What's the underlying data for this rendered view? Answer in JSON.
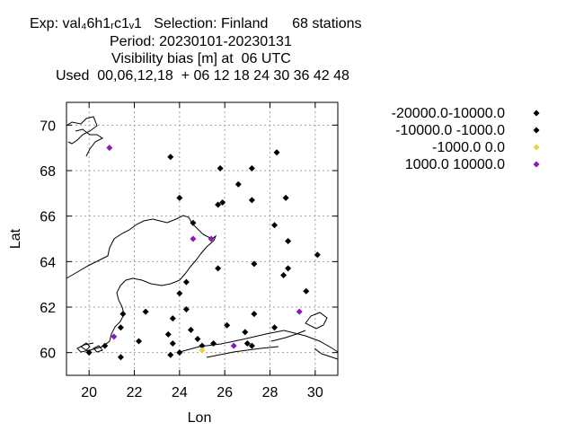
{
  "header": {
    "line1": "Exp: val₄6h1ᵣc1ᵥ1   Selection: Finland      68 stations",
    "line2": "Period: 20230101-20230131",
    "line3": "Visibility bias [m] at  06 UTC",
    "line4": "Used  00,06,12,18  + 06 12 18 24 30 36 42 48"
  },
  "chart_data": {
    "type": "scatter",
    "xlabel": "Lon",
    "ylabel": "Lat",
    "xlim": [
      19.0,
      31.0
    ],
    "ylim": [
      59.0,
      71.0
    ],
    "xticks": [
      20,
      22,
      24,
      26,
      28,
      30
    ],
    "yticks": [
      60,
      62,
      64,
      66,
      68,
      70
    ],
    "grid": true,
    "legend_position": "right",
    "series": [
      {
        "name": "-20000.0-10000.0",
        "color": "#000000",
        "points": []
      },
      {
        "name": "-10000.0 -1000.0",
        "color": "#000000",
        "points": [
          [
            20.0,
            60.0
          ],
          [
            20.7,
            60.3
          ],
          [
            21.4,
            59.8
          ],
          [
            21.4,
            61.1
          ],
          [
            21.5,
            61.7
          ],
          [
            22.2,
            60.5
          ],
          [
            22.5,
            61.8
          ],
          [
            23.5,
            60.8
          ],
          [
            23.6,
            59.9
          ],
          [
            23.6,
            68.6
          ],
          [
            23.7,
            61.5
          ],
          [
            23.7,
            60.4
          ],
          [
            24.0,
            66.8
          ],
          [
            24.0,
            60.0
          ],
          [
            24.0,
            62.6
          ],
          [
            24.3,
            61.9
          ],
          [
            24.3,
            63.1
          ],
          [
            24.5,
            61.0
          ],
          [
            24.6,
            65.7
          ],
          [
            24.8,
            60.6
          ],
          [
            25.0,
            60.3
          ],
          [
            25.5,
            60.4
          ],
          [
            25.7,
            63.7
          ],
          [
            25.7,
            66.5
          ],
          [
            25.8,
            68.1
          ],
          [
            25.9,
            66.6
          ],
          [
            26.1,
            61.2
          ],
          [
            26.6,
            67.4
          ],
          [
            26.9,
            60.9
          ],
          [
            27.0,
            60.4
          ],
          [
            27.2,
            60.3
          ],
          [
            27.2,
            66.7
          ],
          [
            27.2,
            68.1
          ],
          [
            27.3,
            63.9
          ],
          [
            27.3,
            61.7
          ],
          [
            28.2,
            65.6
          ],
          [
            28.2,
            61.1
          ],
          [
            28.3,
            68.8
          ],
          [
            28.6,
            63.4
          ],
          [
            28.7,
            66.8
          ],
          [
            28.8,
            64.9
          ],
          [
            28.8,
            63.7
          ],
          [
            29.6,
            62.7
          ],
          [
            30.1,
            64.3
          ]
        ]
      },
      {
        "name": "-1000.0 0.0",
        "color": "#f0d040",
        "points": [
          [
            25.0,
            60.1
          ]
        ]
      },
      {
        "name": "1000.0 10000.0",
        "color": "#8a1ab8",
        "points": [
          [
            20.9,
            69.0
          ],
          [
            21.1,
            60.7
          ],
          [
            24.6,
            65.0
          ],
          [
            25.4,
            65.0
          ],
          [
            26.4,
            60.3
          ],
          [
            29.3,
            61.8
          ]
        ]
      }
    ]
  }
}
